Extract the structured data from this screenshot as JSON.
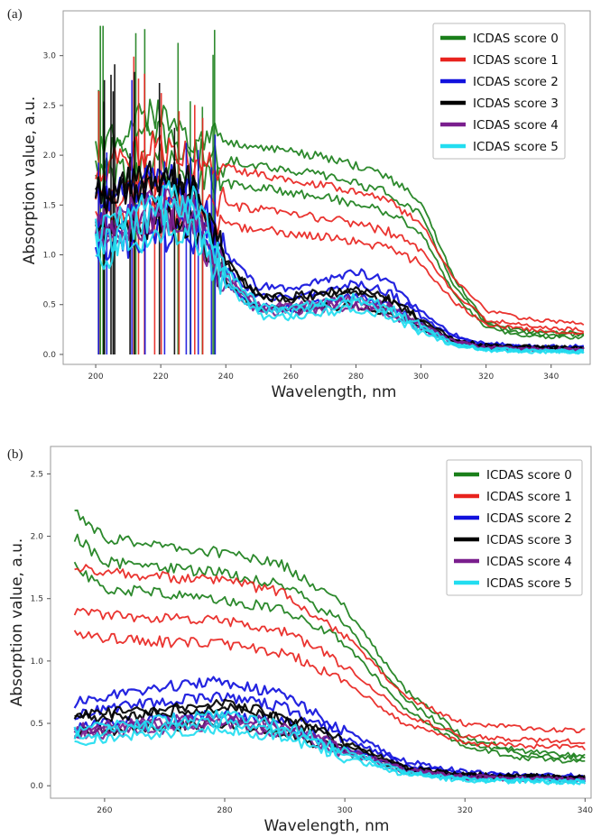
{
  "figure": {
    "panels": [
      "(a)",
      "(b)"
    ]
  },
  "chart_data": [
    {
      "panel": "(a)",
      "type": "line",
      "xlabel": "Wavelength, nm",
      "ylabel": "Absorption value, a.u.",
      "xlim": [
        190,
        352
      ],
      "ylim": [
        -0.1,
        3.45
      ],
      "x_ticks": [
        200,
        220,
        240,
        260,
        280,
        300,
        320,
        340
      ],
      "y_ticks": [
        0.0,
        0.5,
        1.0,
        1.5,
        2.0,
        2.5,
        3.0
      ],
      "x_tick_labels": [
        "200",
        "220",
        "240",
        "260",
        "280",
        "300",
        "320",
        "340"
      ],
      "y_tick_labels": [
        "0.0",
        "0.5",
        "1.0",
        "1.5",
        "2.0",
        "2.5",
        "3.0"
      ],
      "grid": false,
      "legend_position": "top-right",
      "legend": [
        "ICDAS score 0",
        "ICDAS score 1",
        "ICDAS score 2",
        "ICDAS score 3",
        "ICDAS score 4",
        "ICDAS score 5"
      ],
      "series": [
        {
          "name": "ICDAS score 0",
          "color": "#1a7f1a",
          "x": [
            200,
            210,
            220,
            230,
            240,
            250,
            260,
            270,
            280,
            290,
            300,
            310,
            320,
            330,
            340,
            350
          ],
          "values": [
            1.9,
            2.1,
            2.2,
            2.0,
            1.95,
            1.9,
            1.85,
            1.8,
            1.72,
            1.62,
            1.4,
            0.7,
            0.3,
            0.22,
            0.2,
            0.2
          ]
        },
        {
          "name": "ICDAS score 1",
          "color": "#e8231e",
          "x": [
            200,
            210,
            220,
            230,
            240,
            250,
            260,
            270,
            280,
            290,
            300,
            310,
            320,
            330,
            340,
            350
          ],
          "values": [
            1.7,
            1.8,
            1.9,
            1.75,
            1.7,
            1.65,
            1.6,
            1.55,
            1.5,
            1.4,
            1.2,
            0.7,
            0.4,
            0.34,
            0.3,
            0.28
          ]
        },
        {
          "name": "ICDAS score 2",
          "color": "#1111dd",
          "x": [
            200,
            210,
            220,
            230,
            240,
            250,
            260,
            270,
            280,
            290,
            300,
            310,
            320,
            330,
            340,
            350
          ],
          "values": [
            1.4,
            1.5,
            1.6,
            1.55,
            0.9,
            0.62,
            0.6,
            0.68,
            0.76,
            0.66,
            0.4,
            0.18,
            0.1,
            0.08,
            0.07,
            0.07
          ]
        },
        {
          "name": "ICDAS score 3",
          "color": "#000000",
          "x": [
            200,
            210,
            220,
            230,
            240,
            250,
            260,
            270,
            280,
            290,
            300,
            310,
            320,
            330,
            340,
            350
          ],
          "values": [
            1.6,
            1.7,
            1.8,
            1.7,
            0.95,
            0.6,
            0.58,
            0.62,
            0.66,
            0.56,
            0.35,
            0.15,
            0.09,
            0.08,
            0.07,
            0.07
          ]
        },
        {
          "name": "ICDAS score 4",
          "color": "#7a1e8e",
          "x": [
            200,
            210,
            220,
            230,
            240,
            250,
            260,
            270,
            280,
            290,
            300,
            310,
            320,
            330,
            340,
            350
          ],
          "values": [
            1.3,
            1.4,
            1.5,
            1.45,
            0.8,
            0.5,
            0.48,
            0.52,
            0.56,
            0.48,
            0.3,
            0.13,
            0.07,
            0.06,
            0.05,
            0.05
          ]
        },
        {
          "name": "ICDAS score 5",
          "color": "#22ddf0",
          "x": [
            200,
            210,
            220,
            230,
            240,
            250,
            260,
            270,
            280,
            290,
            300,
            310,
            320,
            330,
            340,
            350
          ],
          "values": [
            1.1,
            1.3,
            1.45,
            1.4,
            0.78,
            0.45,
            0.42,
            0.48,
            0.52,
            0.44,
            0.26,
            0.1,
            0.05,
            0.04,
            0.03,
            0.03
          ]
        }
      ]
    },
    {
      "panel": "(b)",
      "type": "line",
      "xlabel": "Wavelength, nm",
      "ylabel": "Absorption value, a.u.",
      "xlim": [
        251,
        341
      ],
      "ylim": [
        -0.1,
        2.72
      ],
      "x_ticks": [
        260,
        280,
        300,
        320,
        340
      ],
      "y_ticks": [
        0.0,
        0.5,
        1.0,
        1.5,
        2.0,
        2.5
      ],
      "x_tick_labels": [
        "260",
        "280",
        "300",
        "320",
        "340"
      ],
      "y_tick_labels": [
        "0.0",
        "0.5",
        "1.0",
        "1.5",
        "2.0",
        "2.5"
      ],
      "grid": false,
      "legend_position": "top-right",
      "legend": [
        "ICDAS score 0",
        "ICDAS score 1",
        "ICDAS score 2",
        "ICDAS score 3",
        "ICDAS score 4",
        "ICDAS score 5"
      ],
      "series": [
        {
          "name": "ICDAS score 0",
          "color": "#1a7f1a",
          "x": [
            255,
            260,
            270,
            280,
            290,
            300,
            310,
            320,
            330,
            340
          ],
          "values": [
            2.0,
            1.8,
            1.75,
            1.7,
            1.6,
            1.3,
            0.7,
            0.35,
            0.25,
            0.22
          ]
        },
        {
          "name": "ICDAS score 1",
          "color": "#e8231e",
          "x": [
            255,
            260,
            270,
            280,
            290,
            300,
            310,
            320,
            330,
            340
          ],
          "values": [
            1.6,
            1.55,
            1.52,
            1.5,
            1.4,
            1.1,
            0.65,
            0.45,
            0.42,
            0.4
          ]
        },
        {
          "name": "ICDAS score 2",
          "color": "#1111dd",
          "x": [
            255,
            260,
            270,
            280,
            290,
            300,
            310,
            320,
            330,
            340
          ],
          "values": [
            0.6,
            0.65,
            0.72,
            0.76,
            0.66,
            0.4,
            0.18,
            0.1,
            0.08,
            0.07
          ]
        },
        {
          "name": "ICDAS score 3",
          "color": "#000000",
          "x": [
            255,
            260,
            270,
            280,
            290,
            300,
            310,
            320,
            330,
            340
          ],
          "values": [
            0.55,
            0.58,
            0.62,
            0.66,
            0.56,
            0.35,
            0.15,
            0.09,
            0.08,
            0.07
          ]
        },
        {
          "name": "ICDAS score 4",
          "color": "#7a1e8e",
          "x": [
            255,
            260,
            270,
            280,
            290,
            300,
            310,
            320,
            330,
            340
          ],
          "values": [
            0.45,
            0.48,
            0.52,
            0.56,
            0.48,
            0.3,
            0.13,
            0.07,
            0.06,
            0.05
          ]
        },
        {
          "name": "ICDAS score 5",
          "color": "#22ddf0",
          "x": [
            255,
            260,
            270,
            280,
            290,
            300,
            310,
            320,
            330,
            340
          ],
          "values": [
            0.4,
            0.44,
            0.48,
            0.52,
            0.44,
            0.26,
            0.1,
            0.05,
            0.04,
            0.03
          ]
        }
      ]
    }
  ]
}
